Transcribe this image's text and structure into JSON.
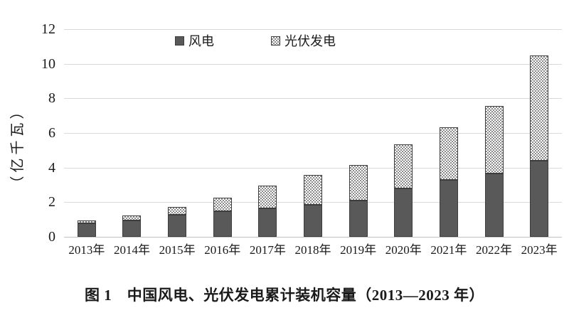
{
  "chart_data": {
    "type": "bar",
    "stacked": true,
    "title": "",
    "caption": "图 1　中国风电、光伏发电累计装机容量（2013—2023 年）",
    "ylabel": "（亿千瓦）",
    "xlabel": "",
    "ylim": [
      0,
      12
    ],
    "ytick_step": 2,
    "grid": true,
    "legend_position": "top-center-inside",
    "categories": [
      "2013年",
      "2014年",
      "2015年",
      "2016年",
      "2017年",
      "2018年",
      "2019年",
      "2020年",
      "2021年",
      "2022年",
      "2023年"
    ],
    "series": [
      {
        "name": "风电",
        "style": "solid-dark-gray",
        "values": [
          0.77,
          0.96,
          1.29,
          1.49,
          1.64,
          1.84,
          2.1,
          2.81,
          3.28,
          3.65,
          4.41
        ]
      },
      {
        "name": "光伏发电",
        "style": "checker-pattern",
        "values": [
          0.19,
          0.28,
          0.43,
          0.77,
          1.3,
          1.74,
          2.04,
          2.53,
          3.06,
          3.93,
          6.09
        ]
      }
    ],
    "totals": [
      0.96,
      1.24,
      1.72,
      2.26,
      2.94,
      3.58,
      4.14,
      5.34,
      6.34,
      7.58,
      10.5
    ]
  },
  "colors": {
    "wind_fill": "#595959",
    "bar_border": "#3d3d3d",
    "pattern_dot": "#8c8c8c",
    "pattern_bg": "#ffffff",
    "gridline": "#d9d9d9",
    "axis_line": "#c2c2c2",
    "text": "#1a1a1a"
  }
}
